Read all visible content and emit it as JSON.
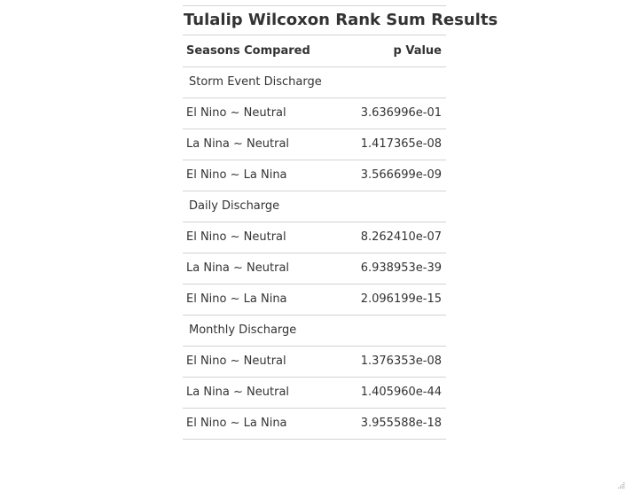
{
  "table": {
    "title": "Tulalip Wilcoxon Rank Sum Results",
    "headers": {
      "seasons": "Seasons Compared",
      "pvalue": "p Value"
    },
    "groups": [
      {
        "label": "Storm Event Discharge",
        "rows": [
          {
            "seasons": "El Nino ~ Neutral",
            "pvalue": "3.636996e-01"
          },
          {
            "seasons": "La Nina ~ Neutral",
            "pvalue": "1.417365e-08"
          },
          {
            "seasons": "El Nino ~ La Nina",
            "pvalue": "3.566699e-09"
          }
        ]
      },
      {
        "label": "Daily Discharge",
        "rows": [
          {
            "seasons": "El Nino ~ Neutral",
            "pvalue": "8.262410e-07"
          },
          {
            "seasons": "La Nina ~ Neutral",
            "pvalue": "6.938953e-39"
          },
          {
            "seasons": "El Nino ~ La Nina",
            "pvalue": "2.096199e-15"
          }
        ]
      },
      {
        "label": "Monthly Discharge",
        "rows": [
          {
            "seasons": "El Nino ~ Neutral",
            "pvalue": "1.376353e-08"
          },
          {
            "seasons": "La Nina ~ Neutral",
            "pvalue": "1.405960e-44"
          },
          {
            "seasons": "El Nino ~ La Nina",
            "pvalue": "3.955588e-18"
          }
        ]
      }
    ]
  }
}
